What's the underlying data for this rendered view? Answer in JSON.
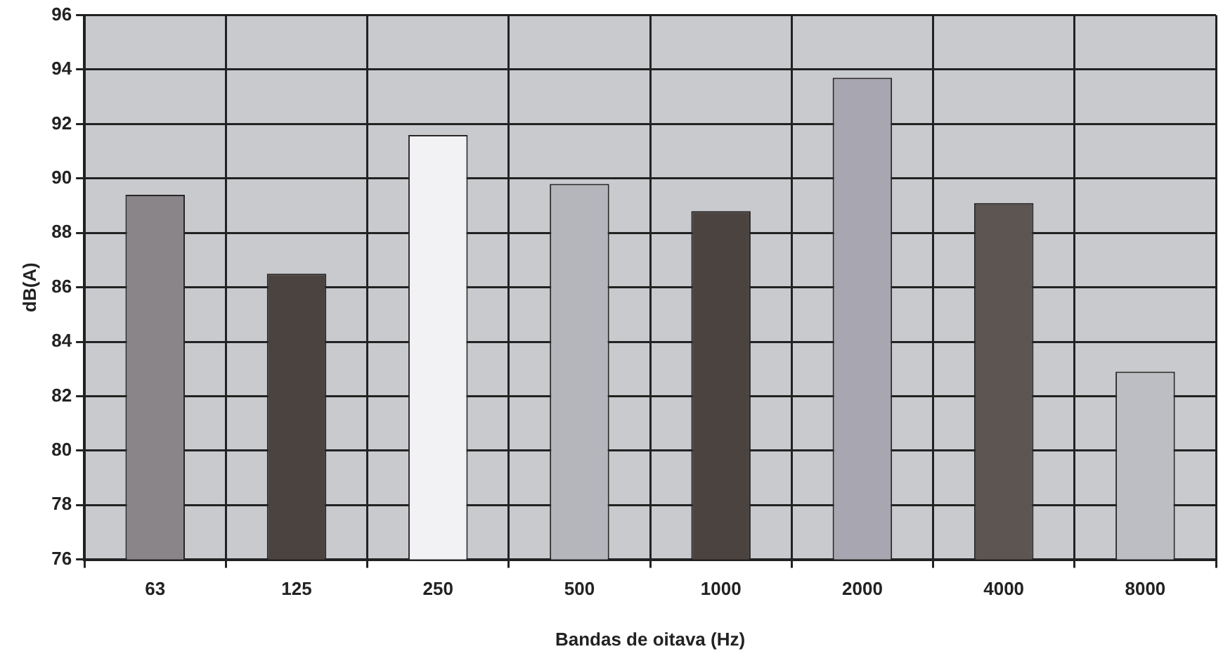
{
  "chart_data": {
    "type": "bar",
    "xlabel": "Bandas de oitava (Hz)",
    "ylabel": "dB(A)",
    "categories": [
      "63",
      "125",
      "250",
      "500",
      "1000",
      "2000",
      "4000",
      "8000"
    ],
    "values": [
      89.4,
      86.5,
      91.6,
      89.8,
      88.8,
      93.7,
      89.1,
      82.9
    ],
    "colors": [
      "#8a8589",
      "#4a4340",
      "#f2f2f4",
      "#b4b6bc",
      "#4a4340",
      "#a8a6b0",
      "#5c5552",
      "#bcbec4"
    ],
    "ylim": [
      76,
      96
    ],
    "yticks": [
      76,
      78,
      80,
      82,
      84,
      86,
      88,
      90,
      92,
      94,
      96
    ],
    "grid": true,
    "legend": false
  }
}
